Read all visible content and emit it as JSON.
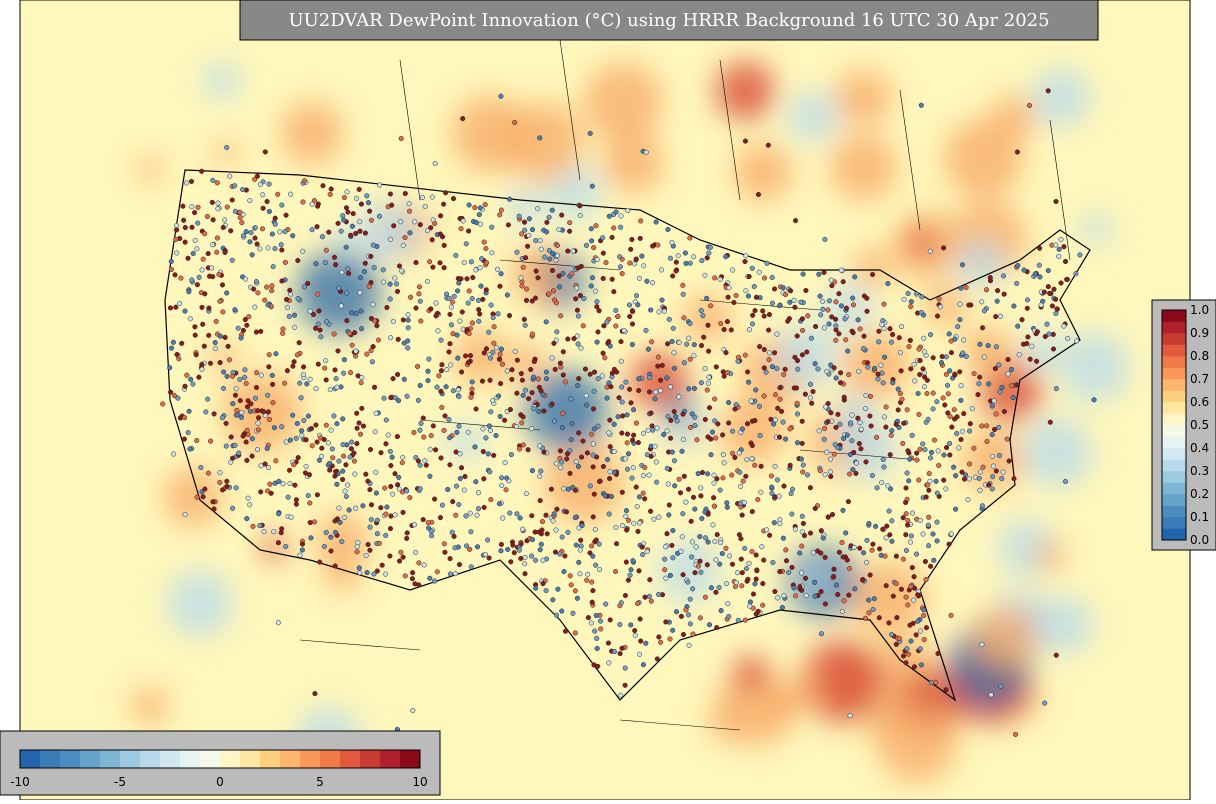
{
  "title": "UU2DVAR DewPoint Innovation (°C) using HRRR Background 16 UTC 30 Apr 2025",
  "colorbar_horizontal": {
    "labels": [
      "-10",
      "-5",
      "0",
      "5",
      "10"
    ]
  },
  "colorbar_vertical": {
    "labels": [
      "0.0",
      "0.1",
      "0.2",
      "0.3",
      "0.4",
      "0.5",
      "0.6",
      "0.7",
      "0.8",
      "0.9",
      "1.0"
    ]
  },
  "colors": [
    "#2166ac",
    "#3a7bb8",
    "#4d8cc1",
    "#67a3cb",
    "#7fb6d6",
    "#9ccae1",
    "#b7d9ea",
    "#d1e7f1",
    "#e7f2f3",
    "#f5f9e8",
    "#fef6c8",
    "#fee7a0",
    "#fdd080",
    "#fdb66b",
    "#f99858",
    "#f07a4a",
    "#e05a3e",
    "#c83a32",
    "#b0202c",
    "#8b0a1a"
  ]
}
